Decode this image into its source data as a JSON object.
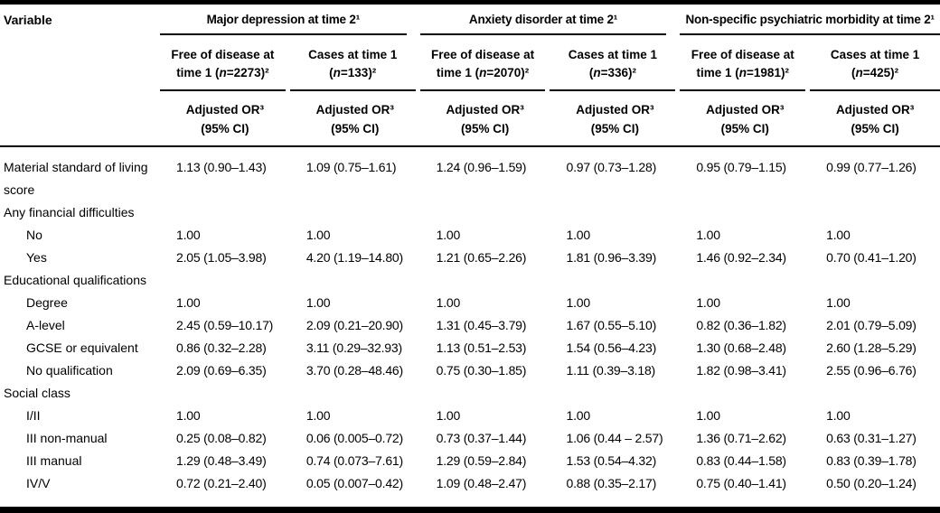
{
  "table": {
    "variable_header": "Variable",
    "n_symbol": "n",
    "adjusted_or_label": "Adjusted OR³",
    "ci_label": "(95% CI)",
    "groups": [
      {
        "title": "Major depression at time 2¹"
      },
      {
        "title": "Anxiety disorder at time 2¹"
      },
      {
        "title": "Non-specific psychiatric morbidity at time 2¹"
      }
    ],
    "subcols": [
      {
        "line1": "Free of disease at",
        "line2_pre": "time 1 (",
        "line2_post": "=2273)²"
      },
      {
        "line1": "Cases at time 1",
        "line2_pre": "(",
        "line2_post": "=133)²"
      },
      {
        "line1": "Free of disease at",
        "line2_pre": "time 1 (",
        "line2_post": "=2070)²"
      },
      {
        "line1": "Cases at time 1",
        "line2_pre": "(",
        "line2_post": "=336)²"
      },
      {
        "line1": "Free of disease at",
        "line2_pre": "time 1 (",
        "line2_post": "=1981)²"
      },
      {
        "line1": "Cases at time 1",
        "line2_pre": "(",
        "line2_post": "=425)²"
      }
    ],
    "rows": [
      {
        "label": "Material standard of living",
        "label2": "score",
        "cells": [
          "1.13 (0.90–1.43)",
          "1.09 (0.75–1.61)",
          "1.24 (0.96–1.59)",
          "0.97 (0.73–1.28)",
          "0.95 (0.79–1.15)",
          "0.99 (0.77–1.26)"
        ]
      },
      {
        "label": "Any financial difficulties",
        "section": true
      },
      {
        "label": "No",
        "cells": [
          "1.00",
          "1.00",
          "1.00",
          "1.00",
          "1.00",
          "1.00"
        ]
      },
      {
        "label": "Yes",
        "cells": [
          "2.05 (1.05–3.98)",
          "4.20 (1.19–14.80)",
          "1.21 (0.65–2.26)",
          "1.81 (0.96–3.39)",
          "1.46 (0.92–2.34)",
          "0.70 (0.41–1.20)"
        ]
      },
      {
        "label": "Educational qualifications",
        "section": true
      },
      {
        "label": "Degree",
        "cells": [
          "1.00",
          "1.00",
          "1.00",
          "1.00",
          "1.00",
          "1.00"
        ]
      },
      {
        "label": "A-level",
        "cells": [
          "2.45 (0.59–10.17)",
          "2.09 (0.21–20.90)",
          "1.31 (0.45–3.79)",
          "1.67 (0.55–5.10)",
          "0.82 (0.36–1.82)",
          "2.01 (0.79–5.09)"
        ]
      },
      {
        "label": "GCSE or equivalent",
        "cells": [
          "0.86 (0.32–2.28)",
          "3.11 (0.29–32.93)",
          "1.13 (0.51–2.53)",
          "1.54 (0.56–4.23)",
          "1.30 (0.68–2.48)",
          "2.60 (1.28–5.29)"
        ]
      },
      {
        "label": "No qualification",
        "cells": [
          "2.09 (0.69–6.35)",
          "3.70 (0.28–48.46)",
          "0.75 (0.30–1.85)",
          "1.11 (0.39–3.18)",
          "1.82 (0.98–3.41)",
          "2.55 (0.96–6.76)"
        ]
      },
      {
        "label": "Social class",
        "section": true
      },
      {
        "label": "I/II",
        "cells": [
          "1.00",
          "1.00",
          "1.00",
          "1.00",
          "1.00",
          "1.00"
        ]
      },
      {
        "label": "III non-manual",
        "cells": [
          "0.25 (0.08–0.82)",
          "0.06 (0.005–0.72)",
          "0.73 (0.37–1.44)",
          "1.06 (0.44 – 2.57)",
          "1.36 (0.71–2.62)",
          "0.63 (0.31–1.27)"
        ]
      },
      {
        "label": "III manual",
        "cells": [
          "1.29 (0.48–3.49)",
          "0.74 (0.073–7.61)",
          "1.29 (0.59–2.84)",
          "1.53 (0.54–4.32)",
          "0.83 (0.44–1.58)",
          "0.83 (0.39–1.78)"
        ]
      },
      {
        "label": "IV/V",
        "cells": [
          "0.72 (0.21–2.40)",
          "0.05 (0.007–0.42)",
          "1.09 (0.48–2.47)",
          "0.88 (0.35–2.17)",
          "0.75 (0.40–1.41)",
          "0.50 (0.20–1.24)"
        ]
      }
    ]
  }
}
